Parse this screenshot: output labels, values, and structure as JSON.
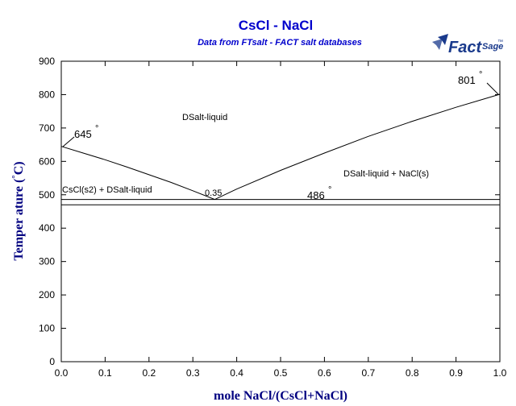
{
  "chart_data": {
    "type": "line",
    "title": "CsCl - NaCl",
    "subtitle": "Data from FTsalt - FACT salt databases",
    "xlabel": "mole NaCl/(CsCl+NaCl)",
    "ylabel_main": "Temper ature (",
    "ylabel_degree": "°",
    "ylabel_unit": "C)",
    "xlim": [
      0,
      1
    ],
    "ylim": [
      0,
      900
    ],
    "x_ticks": [
      "0.0",
      "0.1",
      "0.2",
      "0.3",
      "0.4",
      "0.5",
      "0.6",
      "0.7",
      "0.8",
      "0.9",
      "1.0"
    ],
    "y_ticks": [
      "0",
      "100",
      "200",
      "300",
      "400",
      "500",
      "600",
      "700",
      "800",
      "900"
    ],
    "grid": false,
    "series": [
      {
        "values_x": [
          0.0,
          0.05,
          0.1,
          0.15,
          0.2,
          0.25,
          0.3,
          0.35
        ],
        "values_y": [
          645,
          625,
          605,
          583,
          560,
          537,
          512,
          486
        ]
      },
      {
        "values_x": [
          0.35,
          0.4,
          0.5,
          0.6,
          0.7,
          0.8,
          0.9,
          1.0
        ],
        "values_y": [
          486,
          517,
          573,
          625,
          675,
          720,
          762,
          801
        ]
      },
      {
        "values_x": [
          0.0,
          1.0
        ],
        "values_y": [
          486,
          486
        ]
      },
      {
        "values_x": [
          0.0,
          1.0
        ],
        "values_y": [
          470,
          470
        ]
      }
    ],
    "annotations": {
      "region_liquid": "DSalt-liquid",
      "region_right": "DSalt-liquid + NaCl(s)",
      "region_left": "CsCl(s2) + DSalt-liquid",
      "eutectic_x": "0.35",
      "temp_645": "645",
      "temp_801": "801",
      "temp_486": "486",
      "degree": "°"
    },
    "colors": {
      "title": "#0000cc",
      "axis_label": "#000080",
      "lines": "#000000"
    }
  },
  "logo": {
    "name": "factsage-logo",
    "text_main": "Fact",
    "text_sub": "Sage",
    "mark": "™",
    "color": "#1a3a8c"
  }
}
